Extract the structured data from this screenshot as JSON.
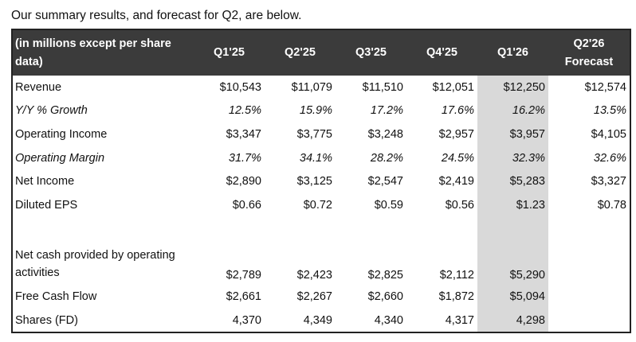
{
  "intro": "Our summary results, and forecast for Q2, are below.",
  "table": {
    "header_label": "(in millions except per share data)",
    "columns": [
      "Q1'25",
      "Q2'25",
      "Q3'25",
      "Q4'25",
      "Q1'26",
      "Q2'26 Forecast"
    ],
    "highlighted_column": "Q1'26",
    "highlight_color": "#d9d9d9",
    "header_color": "#3b3b3b",
    "rows": [
      {
        "label": "Revenue",
        "italic": false,
        "values": [
          "$10,543",
          "$11,079",
          "$11,510",
          "$12,051",
          "$12,250",
          "$12,574"
        ]
      },
      {
        "label": "Y/Y % Growth",
        "italic": true,
        "values": [
          "12.5%",
          "15.9%",
          "17.2%",
          "17.6%",
          "16.2%",
          "13.5%"
        ]
      },
      {
        "label": "Operating Income",
        "italic": false,
        "values": [
          "$3,347",
          "$3,775",
          "$3,248",
          "$2,957",
          "$3,957",
          "$4,105"
        ]
      },
      {
        "label": "Operating Margin",
        "italic": true,
        "values": [
          "31.7%",
          "34.1%",
          "28.2%",
          "24.5%",
          "32.3%",
          "32.6%"
        ]
      },
      {
        "label": "Net Income",
        "italic": false,
        "values": [
          "$2,890",
          "$3,125",
          "$2,547",
          "$2,419",
          "$5,283",
          "$3,327"
        ]
      },
      {
        "label": "Diluted EPS",
        "italic": false,
        "values": [
          "$0.66",
          "$0.72",
          "$0.59",
          "$0.56",
          "$1.23",
          "$0.78"
        ]
      },
      {
        "label": "",
        "italic": false,
        "values": [
          "",
          "",
          "",
          "",
          "",
          ""
        ]
      },
      {
        "label": "Net cash provided by operating activities",
        "italic": false,
        "values": [
          "$2,789",
          "$2,423",
          "$2,825",
          "$2,112",
          "$5,290",
          ""
        ]
      },
      {
        "label": "Free Cash Flow",
        "italic": false,
        "values": [
          "$2,661",
          "$2,267",
          "$2,660",
          "$1,872",
          "$5,094",
          ""
        ]
      },
      {
        "label": "Shares (FD)",
        "italic": false,
        "values": [
          "4,370",
          "4,349",
          "4,340",
          "4,317",
          "4,298",
          ""
        ]
      }
    ]
  }
}
